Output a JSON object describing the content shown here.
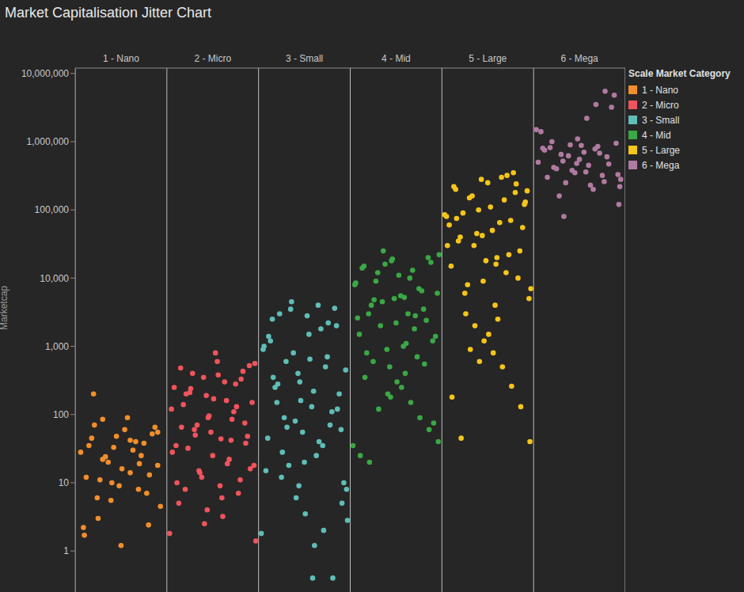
{
  "chart_data": {
    "type": "scatter",
    "title": "Market Capitalisation Jitter Chart",
    "y_label": "Marketcap",
    "legend_title": "Scale Market Category",
    "legend": "right",
    "log": "y",
    "grid": false,
    "xlim": [
      0,
      6
    ],
    "xticks": [
      {
        "value": 0.5,
        "label": "1 - Nano"
      },
      {
        "value": 1.5,
        "label": "2 - Micro"
      },
      {
        "value": 2.5,
        "label": "3 - Small"
      },
      {
        "value": 3.5,
        "label": "4 - Mid"
      },
      {
        "value": 4.5,
        "label": "5 - Large"
      },
      {
        "value": 5.5,
        "label": "6 - Mega"
      }
    ],
    "ylim": [
      0.25,
      12000000
    ],
    "yticks": [
      1,
      10,
      100,
      {
        "value": 1000,
        "label": "1,000"
      },
      {
        "value": 10000,
        "label": "10,000"
      },
      {
        "value": 100000,
        "label": "100,000"
      },
      {
        "value": 1000000,
        "label": "1,000,000"
      },
      {
        "value": 10000000,
        "label": "10,000,000"
      }
    ],
    "series": [
      {
        "name": "1 - Nano",
        "color": "#f28e2b",
        "x": [
          0.06,
          0.12,
          0.18,
          0.24,
          0.3,
          0.36,
          0.42,
          0.48,
          0.54,
          0.6,
          0.66,
          0.72,
          0.78,
          0.84,
          0.9,
          0.09,
          0.15,
          0.21,
          0.27,
          0.33,
          0.39,
          0.45,
          0.51,
          0.57,
          0.63,
          0.69,
          0.75,
          0.81,
          0.87,
          0.93,
          0.1,
          0.2,
          0.3,
          0.4,
          0.5,
          0.6,
          0.7,
          0.8,
          0.9,
          0.25
        ],
        "values": [
          28,
          12,
          45,
          6,
          85,
          20,
          33,
          9,
          60,
          14,
          40,
          25,
          7,
          52,
          18,
          2.2,
          35,
          70,
          11,
          24,
          5.5,
          48,
          16,
          90,
          30,
          8,
          38,
          13,
          65,
          4.5,
          1.7,
          200,
          22,
          10,
          1.2,
          42,
          19,
          2.4,
          55,
          3
        ]
      },
      {
        "name": "2 - Micro",
        "color": "#f0545c",
        "x": [
          1.05,
          1.1,
          1.15,
          1.2,
          1.25,
          1.3,
          1.35,
          1.4,
          1.45,
          1.5,
          1.55,
          1.6,
          1.65,
          1.7,
          1.75,
          1.8,
          1.85,
          1.9,
          1.95,
          1.08,
          1.13,
          1.18,
          1.23,
          1.28,
          1.33,
          1.38,
          1.43,
          1.48,
          1.53,
          1.58,
          1.63,
          1.68,
          1.73,
          1.78,
          1.83,
          1.88,
          1.93,
          1.06,
          1.16,
          1.26,
          1.36,
          1.46,
          1.56,
          1.66,
          1.76,
          1.86,
          1.96,
          1.11,
          1.21,
          1.31,
          1.41,
          1.51,
          1.61,
          1.71,
          1.81,
          1.91,
          1.03,
          1.44,
          1.59,
          1.97
        ],
        "values": [
          120,
          35,
          480,
          8,
          210,
          60,
          15,
          350,
          90,
          25,
          600,
          6,
          160,
          42,
          280,
          11,
          75,
          520,
          18,
          250,
          5,
          140,
          32,
          400,
          70,
          12,
          190,
          55,
          800,
          9,
          300,
          22,
          110,
          7,
          430,
          48,
          150,
          28,
          65,
          240,
          14,
          95,
          380,
          19,
          130,
          38,
          560,
          10,
          200,
          50,
          2.5,
          170,
          3.2,
          85,
          330,
          16,
          1.8,
          4,
          44,
          1.4
        ]
      },
      {
        "name": "3 - Small",
        "color": "#5fbdb8",
        "x": [
          2.05,
          2.1,
          2.15,
          2.2,
          2.25,
          2.3,
          2.35,
          2.4,
          2.45,
          2.5,
          2.55,
          2.6,
          2.65,
          2.7,
          2.75,
          2.8,
          2.85,
          2.9,
          2.95,
          2.08,
          2.13,
          2.18,
          2.23,
          2.28,
          2.33,
          2.38,
          2.43,
          2.48,
          2.53,
          2.58,
          2.63,
          2.68,
          2.73,
          2.78,
          2.83,
          2.88,
          2.93,
          2.06,
          2.16,
          2.26,
          2.36,
          2.46,
          2.56,
          2.66,
          2.76,
          2.86,
          2.96,
          2.11,
          2.21,
          2.31,
          2.41,
          2.51,
          2.61,
          2.71,
          2.81,
          2.91,
          2.03,
          2.44,
          2.59,
          2.97
        ],
        "values": [
          900,
          45,
          2500,
          150,
          12,
          600,
          3500,
          80,
          300,
          20,
          1500,
          220,
          4000,
          35,
          700,
          110,
          2000,
          60,
          450,
          15,
          1200,
          250,
          3000,
          90,
          18,
          800,
          400,
          55,
          2800,
          130,
          25,
          1800,
          500,
          70,
          3600,
          200,
          10,
          1000,
          350,
          28,
          4500,
          160,
          650,
          40,
          2200,
          120,
          8,
          1400,
          280,
          65,
          6,
          3.5,
          1.2,
          2,
          0.4,
          5,
          1.8,
          9,
          0.4,
          2.8
        ]
      },
      {
        "name": "4 - Mid",
        "color": "#3aa845",
        "x": [
          3.05,
          3.1,
          3.15,
          3.2,
          3.25,
          3.3,
          3.35,
          3.4,
          3.45,
          3.5,
          3.55,
          3.6,
          3.65,
          3.7,
          3.75,
          3.8,
          3.85,
          3.9,
          3.95,
          3.08,
          3.13,
          3.18,
          3.23,
          3.28,
          3.33,
          3.38,
          3.43,
          3.48,
          3.53,
          3.58,
          3.63,
          3.68,
          3.73,
          3.78,
          3.83,
          3.88,
          3.93,
          3.06,
          3.16,
          3.26,
          3.36,
          3.46,
          3.56,
          3.66,
          3.76,
          3.86,
          3.96,
          3.11,
          3.21,
          3.31,
          3.41,
          3.51,
          3.61,
          3.71,
          3.81,
          3.91,
          3.03,
          3.44,
          3.59,
          3.97
        ],
        "values": [
          8000,
          1500,
          15000,
          3000,
          600,
          12000,
          4500,
          900,
          18000,
          2200,
          5500,
          400,
          10000,
          1800,
          7000,
          3500,
          20000,
          1200,
          6000,
          2600,
          14000,
          800,
          4000,
          9000,
          2000,
          16000,
          500,
          5000,
          11000,
          1000,
          3000,
          13000,
          700,
          6500,
          2400,
          17000,
          1400,
          8500,
          350,
          4800,
          25000,
          19000,
          250,
          150,
          90,
          60,
          40,
          25,
          20,
          120,
          200,
          300,
          1100,
          2800,
          550,
          75,
          35,
          180,
          5200,
          22000
        ]
      },
      {
        "name": "5 - Large",
        "color": "#f5c518",
        "x": [
          4.05,
          4.1,
          4.15,
          4.2,
          4.25,
          4.3,
          4.35,
          4.4,
          4.45,
          4.5,
          4.55,
          4.6,
          4.65,
          4.7,
          4.75,
          4.8,
          4.85,
          4.9,
          4.95,
          4.08,
          4.13,
          4.18,
          4.23,
          4.28,
          4.33,
          4.38,
          4.43,
          4.48,
          4.53,
          4.58,
          4.63,
          4.68,
          4.73,
          4.78,
          4.83,
          4.88,
          4.93,
          4.06,
          4.16,
          4.26,
          4.36,
          4.46,
          4.56,
          4.66,
          4.76,
          4.86,
          4.96,
          4.11,
          4.21,
          4.31,
          4.41,
          4.51,
          4.61,
          4.71,
          4.81,
          4.91,
          4.03,
          4.44,
          4.59,
          4.97
        ],
        "values": [
          80000,
          15000,
          200000,
          40000,
          6000,
          150000,
          30000,
          100000,
          9000,
          250000,
          50000,
          20000,
          300000,
          12000,
          70000,
          180000,
          25000,
          120000,
          5000,
          60000,
          220000,
          35000,
          90000,
          8000,
          160000,
          45000,
          280000,
          18000,
          110000,
          4000,
          65000,
          140000,
          22000,
          350000,
          10000,
          55000,
          190000,
          30000,
          75000,
          3000,
          2000,
          1200,
          800,
          500,
          260,
          130,
          40,
          180,
          45,
          900,
          600,
          1500,
          2500,
          320000,
          240000,
          130000,
          85000,
          42000,
          16000,
          7000
        ]
      },
      {
        "name": "6 - Mega",
        "color": "#b07aa1",
        "x": [
          5.05,
          5.1,
          5.15,
          5.2,
          5.25,
          5.3,
          5.35,
          5.4,
          5.45,
          5.5,
          5.55,
          5.6,
          5.65,
          5.7,
          5.75,
          5.8,
          5.03,
          5.08,
          5.9,
          5.95,
          5.12,
          5.22,
          5.32,
          5.42,
          5.52,
          5.62,
          5.72,
          5.82,
          5.92,
          5.18,
          5.78,
          5.88,
          5.68,
          5.58,
          5.85,
          5.93,
          5.28,
          5.33,
          5.94,
          5.48,
          5.38,
          5.47,
          5.57,
          5.67,
          5.77
        ],
        "values": [
          500000,
          800000,
          300000,
          1000000,
          400000,
          650000,
          250000,
          900000,
          350000,
          550000,
          700000,
          450000,
          200000,
          850000,
          320000,
          600000,
          1500000,
          1400000,
          950000,
          280000,
          750000,
          420000,
          520000,
          380000,
          880000,
          230000,
          680000,
          470000,
          330000,
          820000,
          5500000,
          4800000,
          3500000,
          2200000,
          3200000,
          120000,
          160000,
          80000,
          220000,
          1100000,
          620000,
          480000,
          360000,
          780000,
          260000
        ]
      }
    ]
  }
}
